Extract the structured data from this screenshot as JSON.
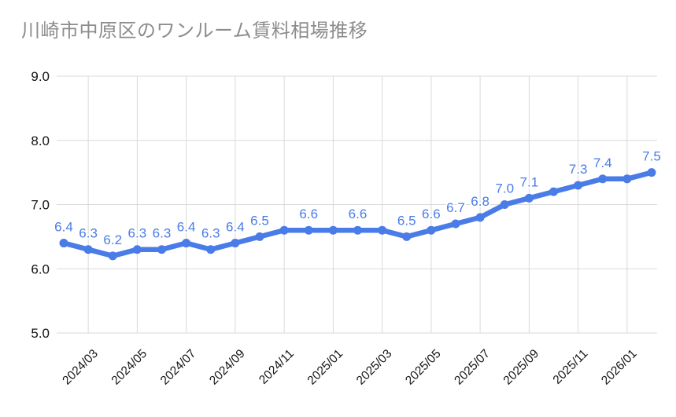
{
  "title": "川崎市中原区のワンルーム賃料相場推移",
  "colors": {
    "line": "#4a7ce8",
    "marker": "#4a7ce8",
    "data_label": "#4a7ce8",
    "data_label_halo": "#ffffff",
    "grid": "#d9d9d9",
    "axis_text": "#141414",
    "title_text": "#8c8c8c",
    "background": "#ffffff"
  },
  "chart_data": {
    "type": "line",
    "title": "川崎市中原区のワンルーム賃料相場推移",
    "xlabel": "",
    "ylabel": "",
    "ylim": [
      5.0,
      9.0
    ],
    "grid": true,
    "legend": false,
    "x": [
      "2024/02",
      "2024/03",
      "2024/04",
      "2024/05",
      "2024/06",
      "2024/07",
      "2024/08",
      "2024/09",
      "2024/10",
      "2024/11",
      "2024/12",
      "2025/01",
      "2025/02",
      "2025/03",
      "2025/04",
      "2025/05",
      "2025/06",
      "2025/07",
      "2025/08",
      "2025/09",
      "2025/10",
      "2025/11",
      "2025/12",
      "2026/01",
      "2026/02"
    ],
    "values": [
      6.4,
      6.3,
      6.2,
      6.3,
      6.3,
      6.4,
      6.3,
      6.4,
      6.5,
      6.6,
      6.6,
      6.6,
      6.6,
      6.6,
      6.5,
      6.6,
      6.7,
      6.8,
      7.0,
      7.1,
      7.2,
      7.3,
      7.4,
      7.4,
      7.5
    ],
    "point_labels": [
      "6.4",
      "6.3",
      "6.2",
      "6.3",
      "6.3",
      "6.4",
      "6.3",
      "6.4",
      "6.5",
      null,
      "6.6",
      null,
      "6.6",
      null,
      "6.5",
      "6.6",
      "6.7",
      "6.8",
      "7.0",
      "7.1",
      null,
      "7.3",
      "7.4",
      null,
      "7.5"
    ],
    "x_tick_labels": [
      "2024/03",
      "2024/05",
      "2024/07",
      "2024/09",
      "2024/11",
      "2025/01",
      "2025/03",
      "2025/05",
      "2025/07",
      "2025/09",
      "2025/11",
      "2026/01"
    ],
    "y_tick_labels": [
      "5.0",
      "6.0",
      "7.0",
      "8.0",
      "9.0"
    ]
  }
}
